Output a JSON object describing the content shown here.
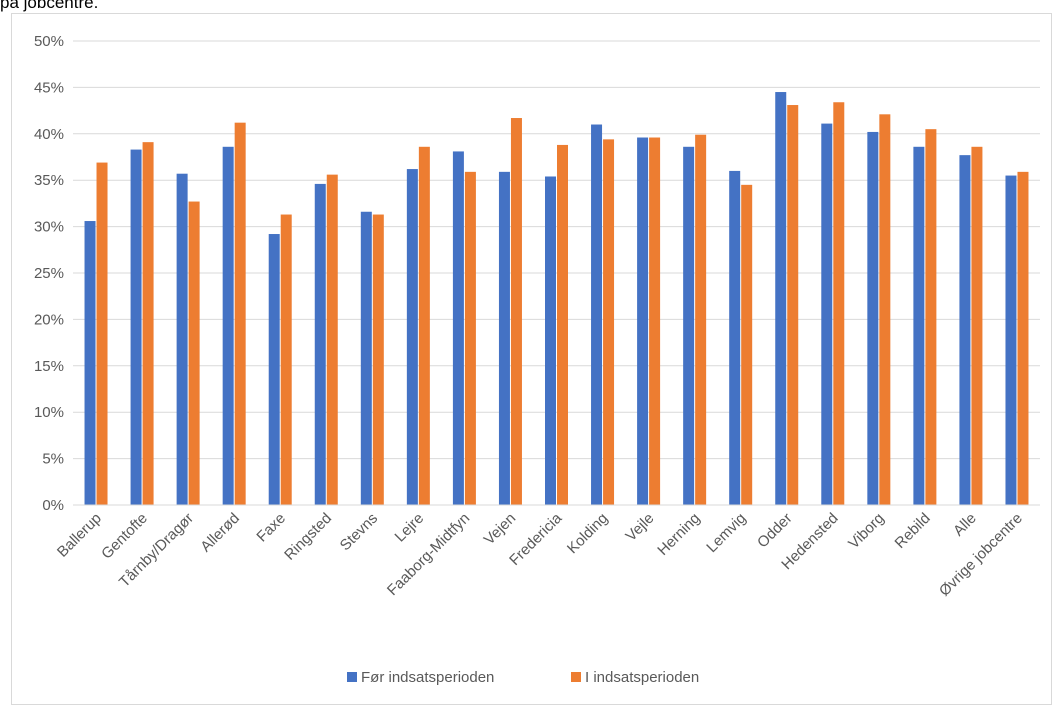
{
  "caption": "på jobcentre.",
  "chart_data": {
    "type": "bar",
    "title": "",
    "xlabel": "",
    "ylabel": "",
    "ylim": [
      0,
      50
    ],
    "y_ticks": [
      "0%",
      "5%",
      "10%",
      "15%",
      "20%",
      "25%",
      "30%",
      "35%",
      "40%",
      "45%",
      "50%"
    ],
    "grid": true,
    "legend_position": "bottom",
    "categories": [
      "Ballerup",
      "Gentofte",
      "Tårnby/Dragør",
      "Allerød",
      "Faxe",
      "Ringsted",
      "Stevns",
      "Lejre",
      "Faaborg-Midtfyn",
      "Vejen",
      "Fredericia",
      "Kolding",
      "Vejle",
      "Herning",
      "Lemvig",
      "Odder",
      "Hedensted",
      "Viborg",
      "Rebild",
      "Alle",
      "Øvrige jobcentre"
    ],
    "series": [
      {
        "name": "Før indsatsperioden",
        "color": "#4472c4",
        "values": [
          30.6,
          38.3,
          35.7,
          38.6,
          29.2,
          34.6,
          31.6,
          36.2,
          38.1,
          35.9,
          35.4,
          41.0,
          39.6,
          38.6,
          36.0,
          44.5,
          41.1,
          40.2,
          38.6,
          37.7,
          35.5
        ]
      },
      {
        "name": "I indsatsperioden",
        "color": "#ed7d31",
        "values": [
          36.9,
          39.1,
          32.7,
          41.2,
          31.3,
          35.6,
          31.3,
          38.6,
          35.9,
          41.7,
          38.8,
          39.4,
          39.6,
          39.9,
          34.5,
          43.1,
          43.4,
          42.1,
          40.5,
          38.6,
          35.9
        ]
      }
    ]
  }
}
